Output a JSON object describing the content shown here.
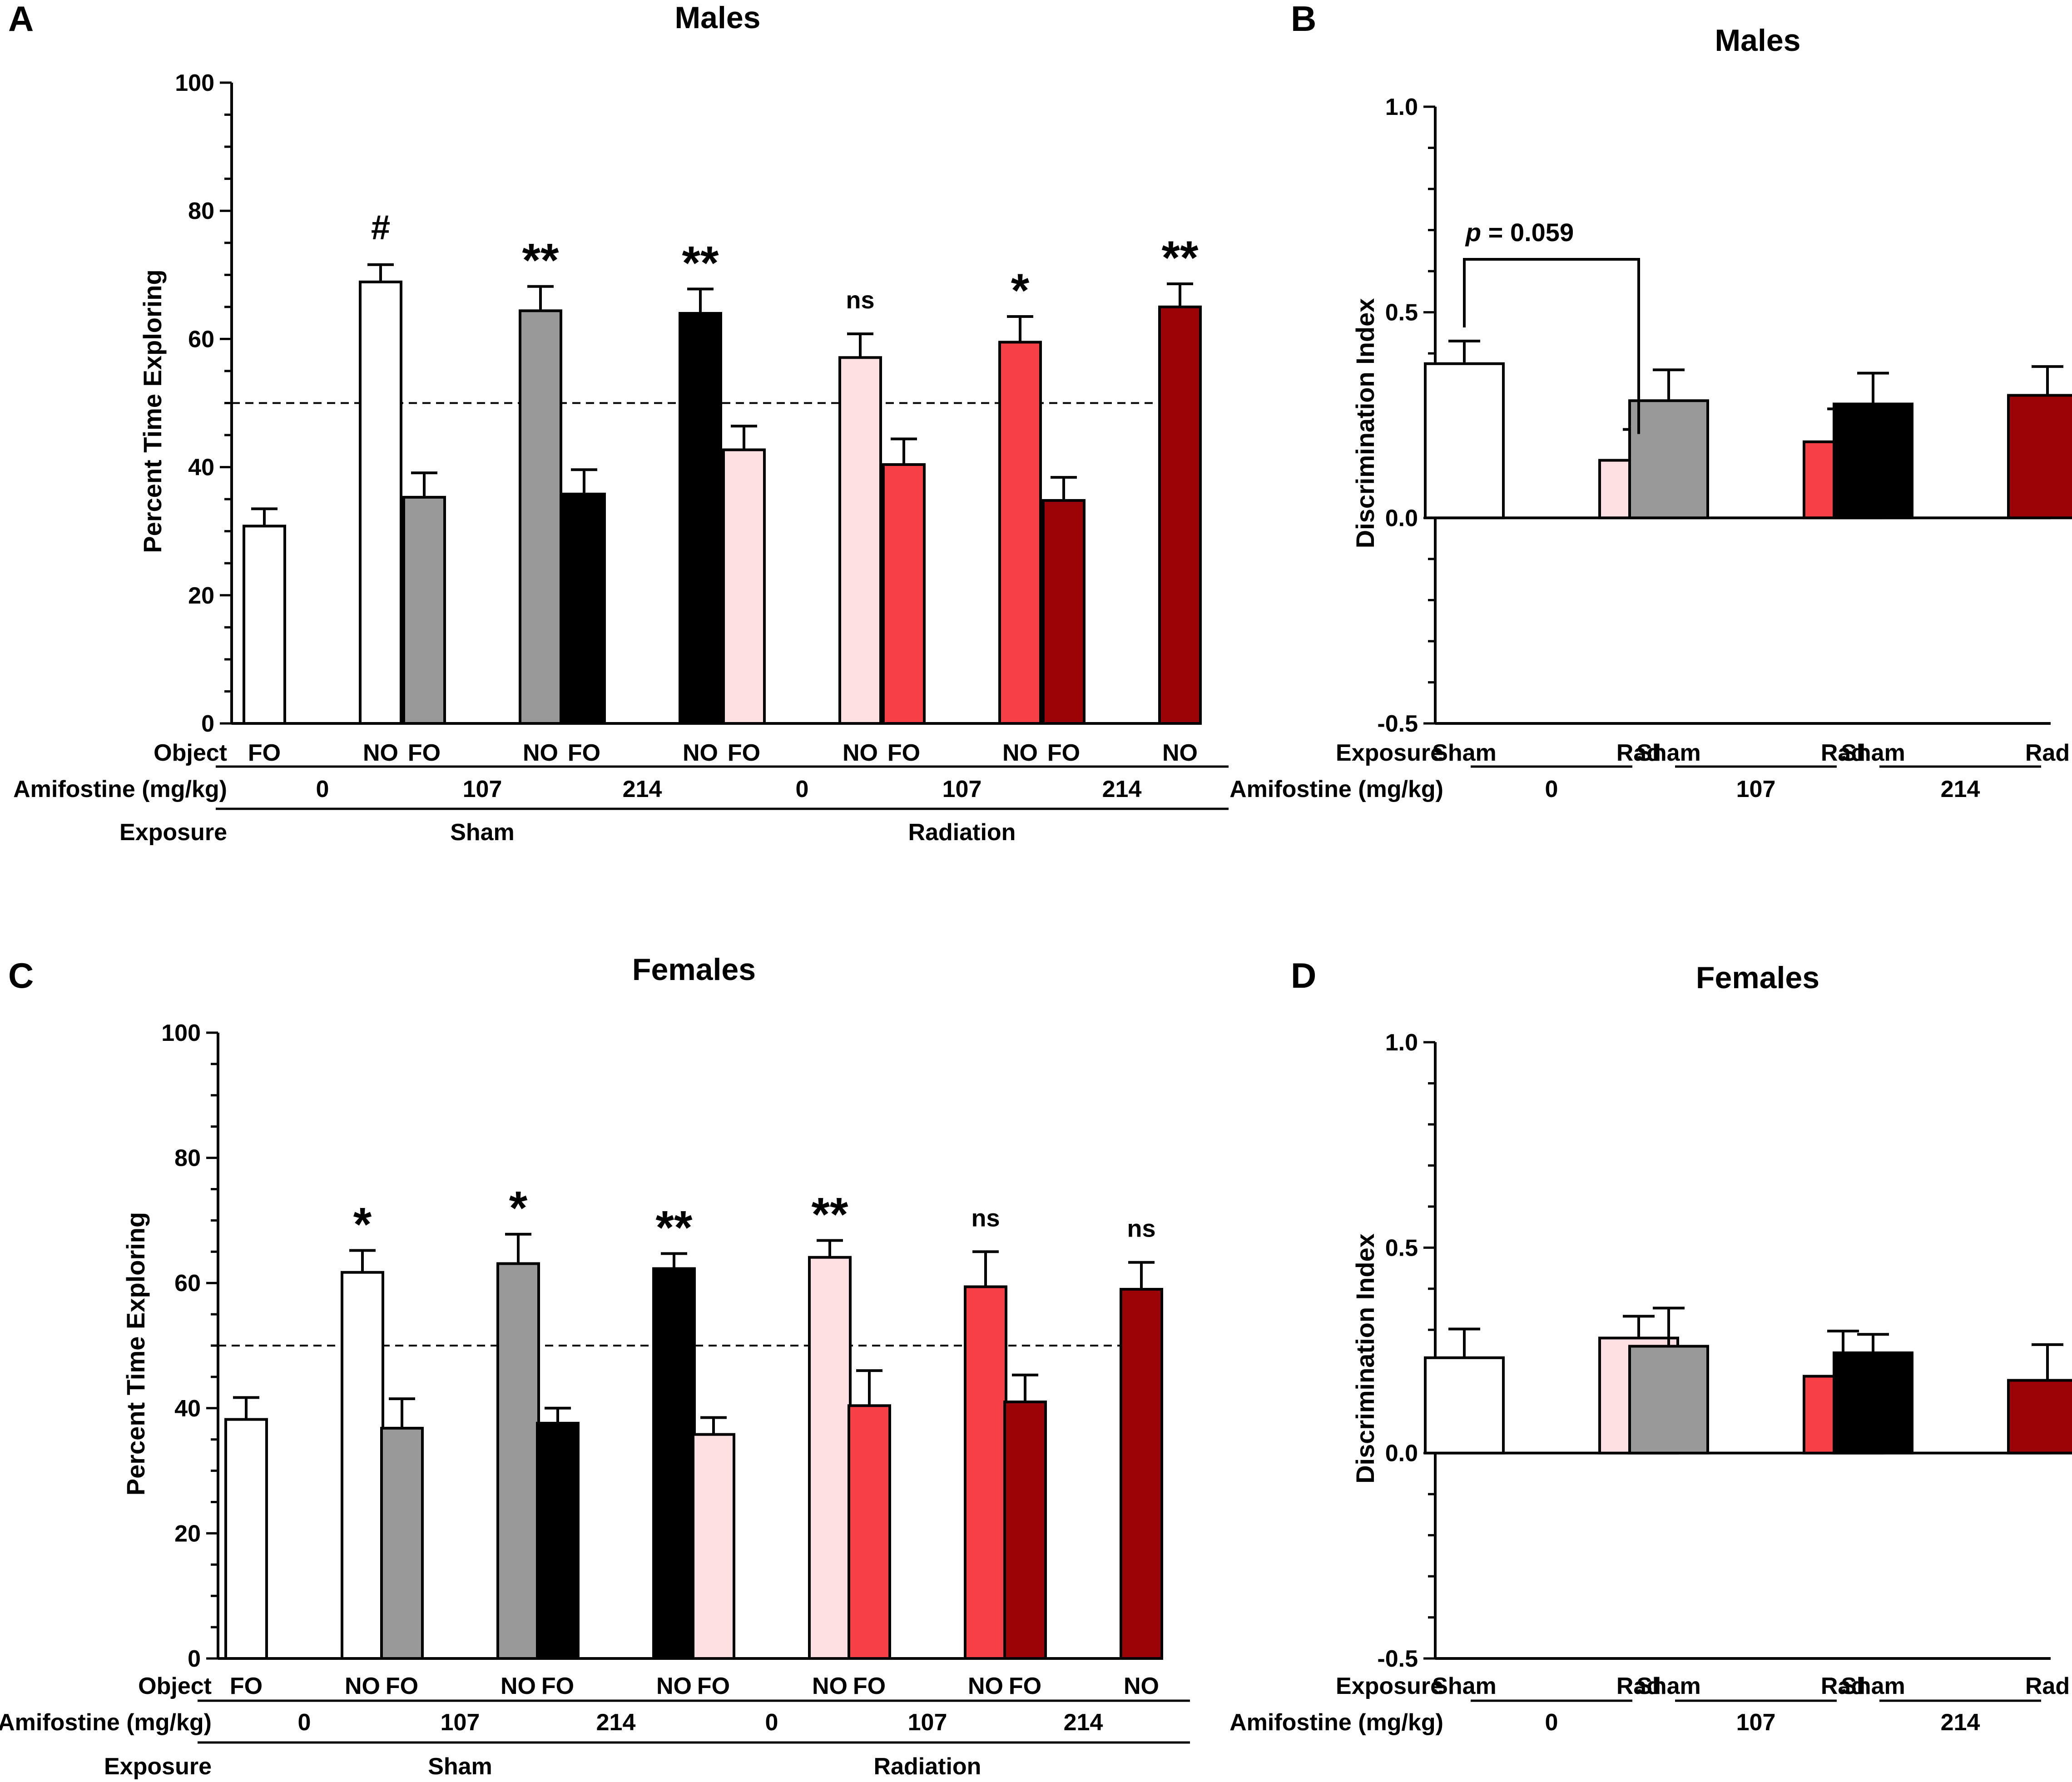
{
  "colors": {
    "white": "#ffffff",
    "gray": "#999999",
    "black": "#000000",
    "light_pink": "#ffe0e2",
    "red": "#f74045",
    "dark_red": "#9c0306"
  },
  "chart_data": [
    {
      "panel": "A",
      "title": "Males",
      "type": "bar",
      "ylabel": "Percent Time Exploring",
      "ylim": [
        0,
        100
      ],
      "y_ticks": [
        "0",
        "20",
        "40",
        "60",
        "80",
        "100"
      ],
      "reference_line": 50,
      "row_labels": {
        "object": "Object",
        "amifostine": "Amifostine (mg/kg)",
        "exposure": "Exposure"
      },
      "doses": [
        "0",
        "107",
        "214",
        "0",
        "107",
        "214"
      ],
      "exposures": [
        "Sham",
        "Radiation"
      ],
      "bars": [
        {
          "label": "FO",
          "value": 30.8,
          "err": 2.7,
          "color": "white"
        },
        {
          "label": "NO",
          "value": 68.9,
          "err": 2.7,
          "color": "white"
        },
        {
          "label": "FO",
          "value": 35.3,
          "err": 3.8,
          "color": "gray"
        },
        {
          "label": "NO",
          "value": 64.4,
          "err": 3.8,
          "color": "gray"
        },
        {
          "label": "FO",
          "value": 35.8,
          "err": 3.8,
          "color": "black"
        },
        {
          "label": "NO",
          "value": 64.0,
          "err": 3.8,
          "color": "black"
        },
        {
          "label": "FO",
          "value": 42.7,
          "err": 3.7,
          "color": "light_pink"
        },
        {
          "label": "NO",
          "value": 57.1,
          "err": 3.7,
          "color": "light_pink"
        },
        {
          "label": "FO",
          "value": 40.4,
          "err": 4.0,
          "color": "red"
        },
        {
          "label": "NO",
          "value": 59.5,
          "err": 4.0,
          "color": "red"
        },
        {
          "label": "FO",
          "value": 34.8,
          "err": 3.6,
          "color": "dark_red"
        },
        {
          "label": "NO",
          "value": 65.0,
          "err": 3.6,
          "color": "dark_red"
        }
      ],
      "annotations": [
        {
          "pair": 0,
          "text": "#"
        },
        {
          "pair": 1,
          "text": "**"
        },
        {
          "pair": 2,
          "text": "**"
        },
        {
          "pair": 3,
          "text": "ns"
        },
        {
          "pair": 4,
          "text": "*"
        },
        {
          "pair": 5,
          "text": "**"
        }
      ]
    },
    {
      "panel": "B",
      "title": "Males",
      "type": "bar",
      "ylabel": "Discrimination Index",
      "ylim": [
        -0.5,
        1.0
      ],
      "y_ticks": [
        "-0.5",
        "0.0",
        "0.5",
        "1.0"
      ],
      "row_labels": {
        "exposure": "Exposure",
        "amifostine": "Amifostine (mg/kg)"
      },
      "doses": [
        "0",
        "107",
        "214"
      ],
      "bars": [
        {
          "label": "Sham",
          "value": 0.375,
          "err": 0.055,
          "color": "white"
        },
        {
          "label": "Rad",
          "value": 0.14,
          "err": 0.075,
          "color": "light_pink"
        },
        {
          "label": "Sham",
          "value": 0.285,
          "err": 0.075,
          "color": "gray"
        },
        {
          "label": "Rad",
          "value": 0.185,
          "err": 0.08,
          "color": "red"
        },
        {
          "label": "Sham",
          "value": 0.277,
          "err": 0.075,
          "color": "black"
        },
        {
          "label": "Rad",
          "value": 0.298,
          "err": 0.07,
          "color": "dark_red"
        }
      ],
      "bracket": {
        "from": 0,
        "to": 1,
        "text_p": "p",
        "text_value": " = 0.059"
      }
    },
    {
      "panel": "C",
      "title": "Females",
      "type": "bar",
      "ylabel": "Percent Time Exploring",
      "ylim": [
        0,
        100
      ],
      "y_ticks": [
        "0",
        "20",
        "40",
        "60",
        "80",
        "100"
      ],
      "reference_line": 50,
      "row_labels": {
        "object": "Object",
        "amifostine": "Amifostine (mg/kg)",
        "exposure": "Exposure"
      },
      "doses": [
        "0",
        "107",
        "214",
        "0",
        "107",
        "214"
      ],
      "exposures": [
        "Sham",
        "Radiation"
      ],
      "bars": [
        {
          "label": "FO",
          "value": 38.2,
          "err": 3.5,
          "color": "white"
        },
        {
          "label": "NO",
          "value": 61.7,
          "err": 3.5,
          "color": "white"
        },
        {
          "label": "FO",
          "value": 36.8,
          "err": 4.7,
          "color": "gray"
        },
        {
          "label": "NO",
          "value": 63.1,
          "err": 4.7,
          "color": "gray"
        },
        {
          "label": "FO",
          "value": 37.6,
          "err": 2.4,
          "color": "black"
        },
        {
          "label": "NO",
          "value": 62.3,
          "err": 2.4,
          "color": "black"
        },
        {
          "label": "FO",
          "value": 35.8,
          "err": 2.7,
          "color": "light_pink"
        },
        {
          "label": "NO",
          "value": 64.1,
          "err": 2.7,
          "color": "light_pink"
        },
        {
          "label": "FO",
          "value": 40.4,
          "err": 5.6,
          "color": "red"
        },
        {
          "label": "NO",
          "value": 59.4,
          "err": 5.6,
          "color": "red"
        },
        {
          "label": "FO",
          "value": 41.0,
          "err": 4.3,
          "color": "dark_red"
        },
        {
          "label": "NO",
          "value": 59.0,
          "err": 4.3,
          "color": "dark_red"
        }
      ],
      "annotations": [
        {
          "pair": 0,
          "text": "*"
        },
        {
          "pair": 1,
          "text": "*"
        },
        {
          "pair": 2,
          "text": "**"
        },
        {
          "pair": 3,
          "text": "**"
        },
        {
          "pair": 4,
          "text": "ns"
        },
        {
          "pair": 5,
          "text": "ns"
        }
      ]
    },
    {
      "panel": "D",
      "title": "Females",
      "type": "bar",
      "ylabel": "Discrimination Index",
      "ylim": [
        -0.5,
        1.0
      ],
      "y_ticks": [
        "-0.5",
        "0.0",
        "0.5",
        "1.0"
      ],
      "row_labels": {
        "exposure": "Exposure",
        "amifostine": "Amifostine (mg/kg)"
      },
      "doses": [
        "0",
        "107",
        "214"
      ],
      "bars": [
        {
          "label": "Sham",
          "value": 0.232,
          "err": 0.07,
          "color": "white"
        },
        {
          "label": "Rad",
          "value": 0.28,
          "err": 0.053,
          "color": "light_pink"
        },
        {
          "label": "Sham",
          "value": 0.26,
          "err": 0.093,
          "color": "gray"
        },
        {
          "label": "Rad",
          "value": 0.187,
          "err": 0.11,
          "color": "red"
        },
        {
          "label": "Sham",
          "value": 0.244,
          "err": 0.045,
          "color": "black"
        },
        {
          "label": "Rad",
          "value": 0.177,
          "err": 0.087,
          "color": "dark_red"
        }
      ]
    }
  ]
}
